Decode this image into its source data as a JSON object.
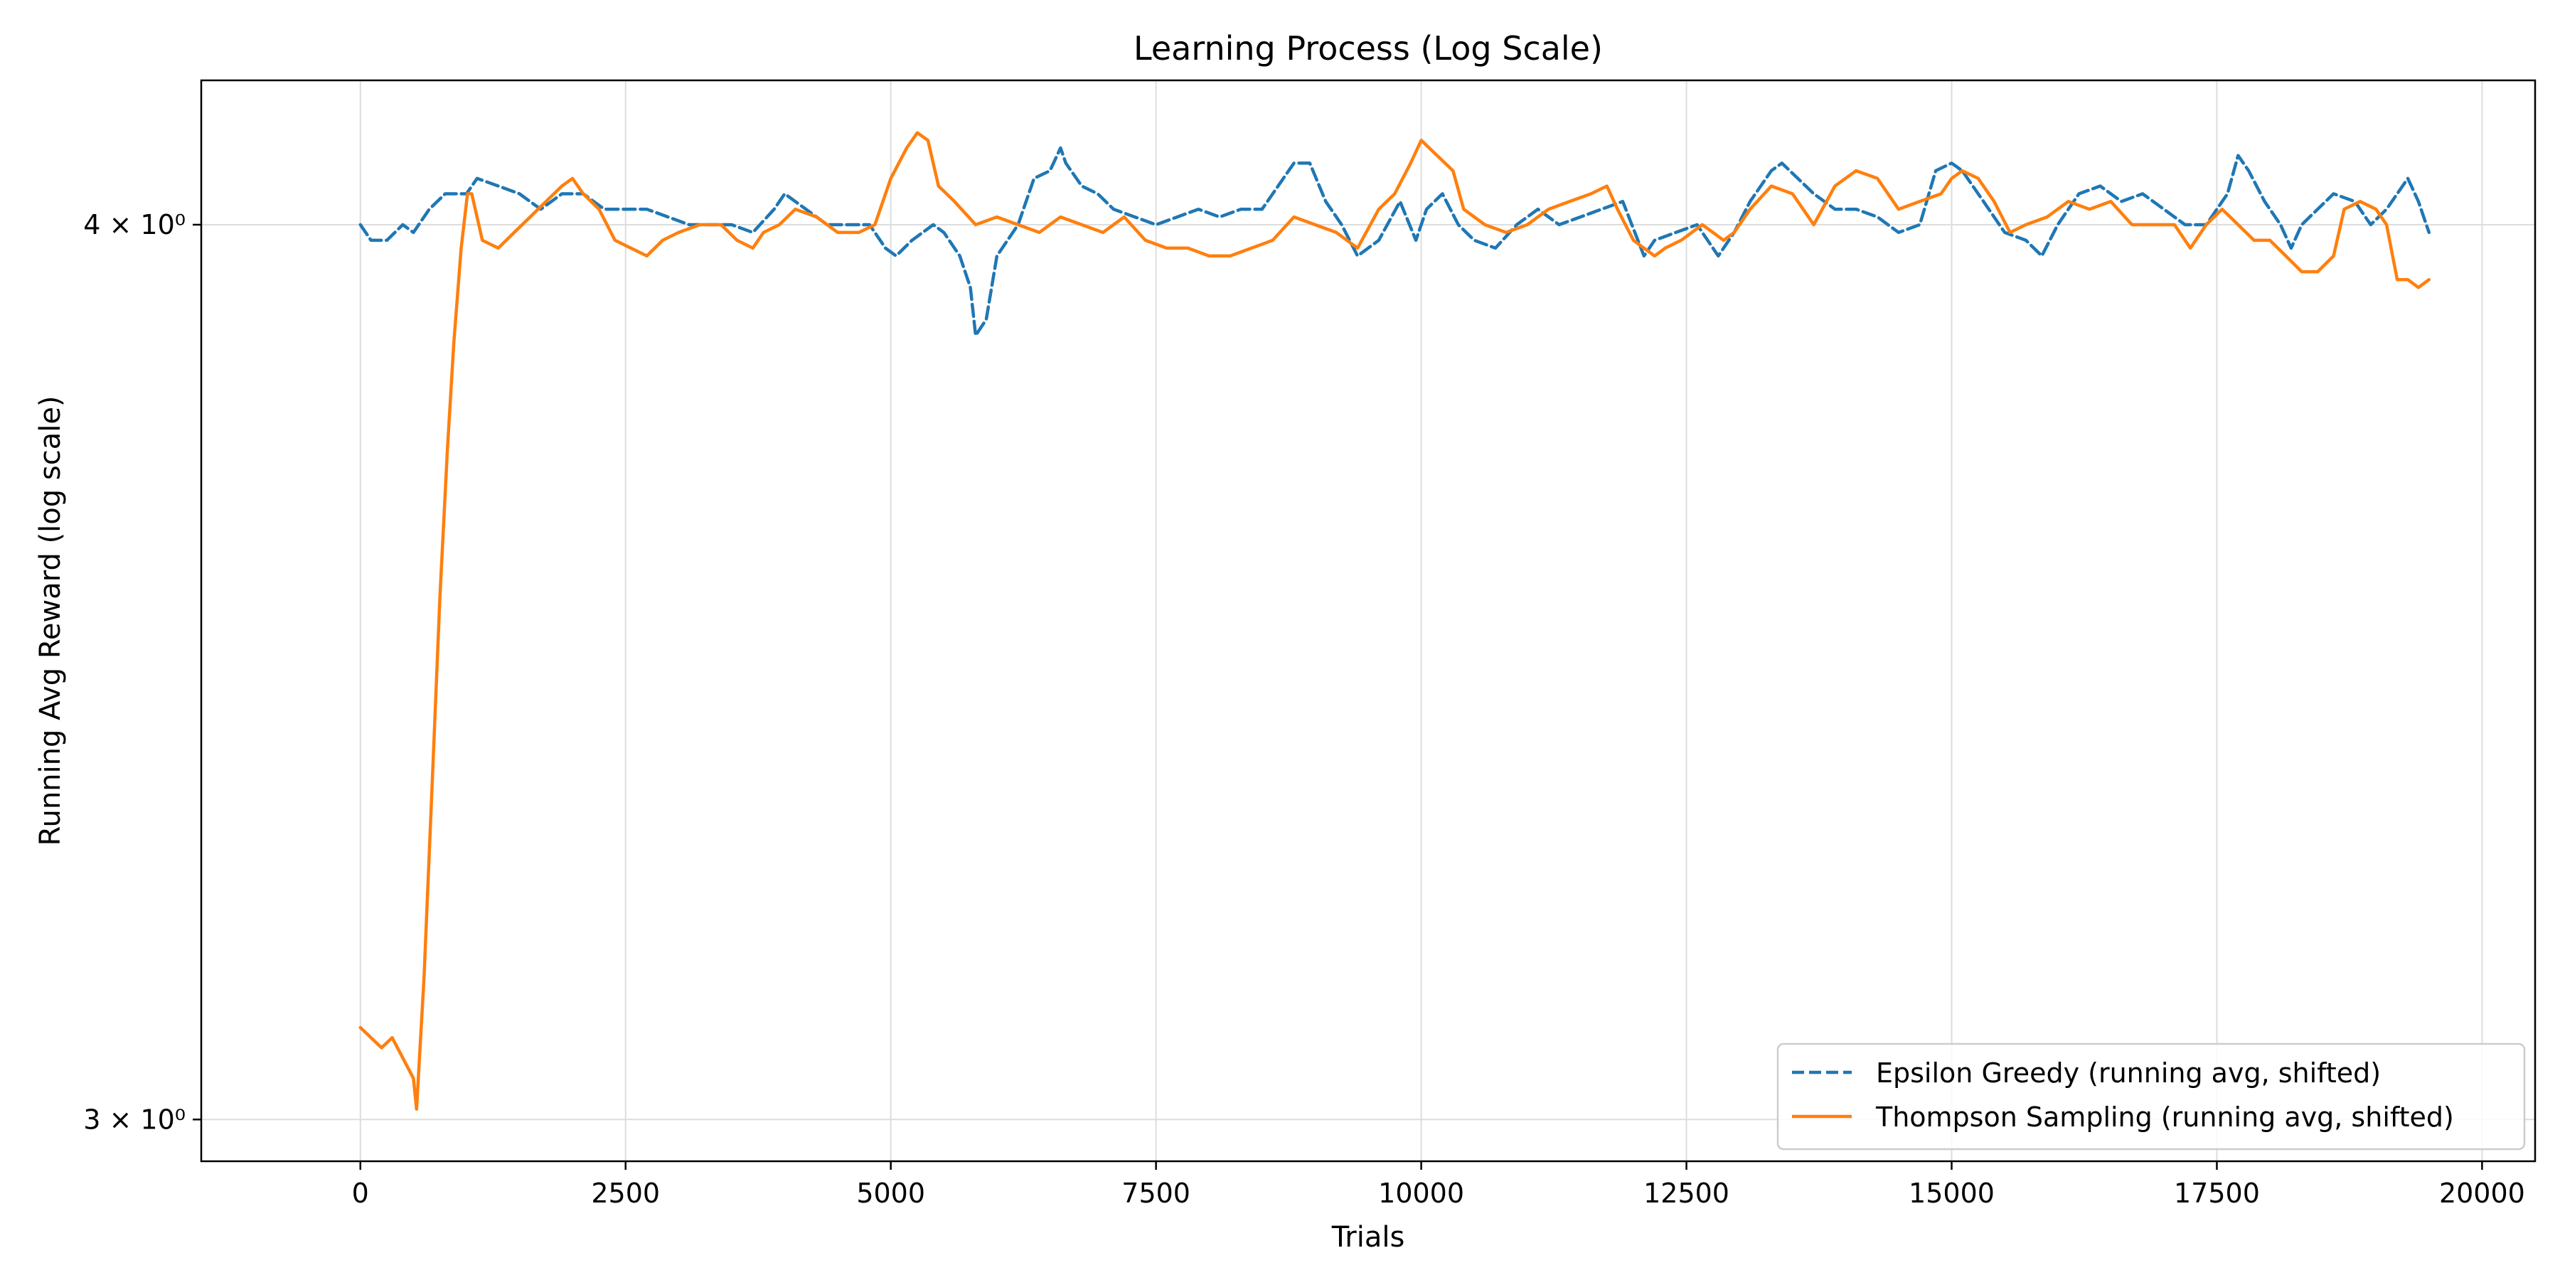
{
  "chart_data": {
    "type": "line",
    "title": "Learning Process (Log Scale)",
    "xlabel": "Trials",
    "ylabel": "Running Avg Reward (log scale)",
    "xlim": [
      -1500,
      20500
    ],
    "ylim": [
      2.96,
      4.19
    ],
    "yscale": "log",
    "grid": true,
    "legend_position": "lower-right",
    "x_ticks": [
      0,
      2500,
      5000,
      7500,
      10000,
      12500,
      15000,
      17500,
      20000
    ],
    "x_tick_labels": [
      "0",
      "2500",
      "5000",
      "7500",
      "10000",
      "12500",
      "15000",
      "17500",
      "20000"
    ],
    "y_ticks": [
      3,
      4
    ],
    "y_tick_labels": [
      "3 × 10⁰",
      "4 × 10⁰"
    ],
    "series": [
      {
        "name": "Epsilon Greedy (running avg, shifted)",
        "color": "#1f77b4",
        "style": "dashed",
        "x": [
          0,
          100,
          250,
          400,
          500,
          650,
          800,
          1000,
          1100,
          1300,
          1500,
          1700,
          1900,
          2100,
          2300,
          2500,
          2700,
          2900,
          3100,
          3300,
          3500,
          3700,
          3900,
          4000,
          4200,
          4400,
          4600,
          4800,
          4950,
          5050,
          5200,
          5400,
          5500,
          5650,
          5750,
          5800,
          5900,
          6000,
          6200,
          6350,
          6500,
          6600,
          6650,
          6800,
          6950,
          7100,
          7300,
          7500,
          7700,
          7900,
          8100,
          8300,
          8500,
          8700,
          8800,
          8950,
          9100,
          9250,
          9400,
          9600,
          9800,
          9950,
          10050,
          10200,
          10350,
          10500,
          10700,
          10900,
          11100,
          11300,
          11500,
          11700,
          11900,
          12100,
          12200,
          12400,
          12600,
          12800,
          12950,
          13100,
          13300,
          13400,
          13550,
          13700,
          13900,
          14100,
          14300,
          14500,
          14700,
          14850,
          15000,
          15100,
          15300,
          15500,
          15700,
          15850,
          16000,
          16200,
          16400,
          16600,
          16800,
          17000,
          17200,
          17400,
          17600,
          17700,
          17800,
          17950,
          18100,
          18200,
          18300,
          18450,
          18600,
          18800,
          18950,
          19100,
          19200,
          19300,
          19400,
          19500
        ],
        "y": [
          4.0,
          3.98,
          3.98,
          4.0,
          3.99,
          4.02,
          4.04,
          4.04,
          4.06,
          4.05,
          4.04,
          4.02,
          4.04,
          4.04,
          4.02,
          4.02,
          4.02,
          4.01,
          4.0,
          4.0,
          4.0,
          3.99,
          4.02,
          4.04,
          4.02,
          4.0,
          4.0,
          4.0,
          3.97,
          3.96,
          3.98,
          4.0,
          3.99,
          3.96,
          3.92,
          3.86,
          3.88,
          3.96,
          4.0,
          4.06,
          4.07,
          4.1,
          4.08,
          4.05,
          4.04,
          4.02,
          4.01,
          4.0,
          4.01,
          4.02,
          4.01,
          4.02,
          4.02,
          4.06,
          4.08,
          4.08,
          4.03,
          4.0,
          3.96,
          3.98,
          4.03,
          3.98,
          4.02,
          4.04,
          4.0,
          3.98,
          3.97,
          4.0,
          4.02,
          4.0,
          4.01,
          4.02,
          4.03,
          3.96,
          3.98,
          3.99,
          4.0,
          3.96,
          3.99,
          4.03,
          4.07,
          4.08,
          4.06,
          4.04,
          4.02,
          4.02,
          4.01,
          3.99,
          4.0,
          4.07,
          4.08,
          4.07,
          4.03,
          3.99,
          3.98,
          3.96,
          4.0,
          4.04,
          4.05,
          4.03,
          4.04,
          4.02,
          4.0,
          4.0,
          4.04,
          4.09,
          4.07,
          4.03,
          4.0,
          3.97,
          4.0,
          4.02,
          4.04,
          4.03,
          4.0,
          4.02,
          4.04,
          4.06,
          4.03,
          3.99
        ]
      },
      {
        "name": "Thompson Sampling (running avg, shifted)",
        "color": "#ff7f0e",
        "style": "solid",
        "x": [
          0,
          100,
          200,
          300,
          400,
          500,
          530,
          600,
          680,
          750,
          820,
          880,
          950,
          1010,
          1050,
          1150,
          1300,
          1450,
          1600,
          1750,
          1900,
          2000,
          2100,
          2250,
          2400,
          2550,
          2700,
          2850,
          3000,
          3200,
          3400,
          3550,
          3700,
          3800,
          3950,
          4100,
          4300,
          4500,
          4700,
          4850,
          5000,
          5150,
          5250,
          5350,
          5450,
          5600,
          5800,
          6000,
          6200,
          6400,
          6600,
          6800,
          7000,
          7200,
          7400,
          7600,
          7800,
          8000,
          8200,
          8400,
          8600,
          8800,
          9000,
          9200,
          9400,
          9600,
          9750,
          9900,
          10000,
          10150,
          10300,
          10400,
          10600,
          10800,
          11000,
          11200,
          11400,
          11600,
          11750,
          11850,
          12000,
          12100,
          12200,
          12300,
          12450,
          12650,
          12850,
          12950,
          13100,
          13300,
          13500,
          13700,
          13900,
          14100,
          14300,
          14500,
          14700,
          14900,
          15000,
          15100,
          15250,
          15400,
          15550,
          15700,
          15900,
          16100,
          16300,
          16500,
          16700,
          16900,
          17100,
          17250,
          17400,
          17550,
          17700,
          17850,
          18000,
          18150,
          18300,
          18450,
          18600,
          18700,
          18850,
          19000,
          19100,
          19200,
          19300,
          19400,
          19500
        ],
        "y": [
          3.09,
          3.08,
          3.07,
          3.08,
          3.06,
          3.04,
          3.01,
          3.14,
          3.35,
          3.55,
          3.72,
          3.85,
          3.97,
          4.04,
          4.04,
          3.98,
          3.97,
          3.99,
          4.01,
          4.03,
          4.05,
          4.06,
          4.04,
          4.02,
          3.98,
          3.97,
          3.96,
          3.98,
          3.99,
          4.0,
          4.0,
          3.98,
          3.97,
          3.99,
          4.0,
          4.02,
          4.01,
          3.99,
          3.99,
          4.0,
          4.06,
          4.1,
          4.12,
          4.11,
          4.05,
          4.03,
          4.0,
          4.01,
          4.0,
          3.99,
          4.01,
          4.0,
          3.99,
          4.01,
          3.98,
          3.97,
          3.97,
          3.96,
          3.96,
          3.97,
          3.98,
          4.01,
          4.0,
          3.99,
          3.97,
          4.02,
          4.04,
          4.08,
          4.11,
          4.09,
          4.07,
          4.02,
          4.0,
          3.99,
          4.0,
          4.02,
          4.03,
          4.04,
          4.05,
          4.02,
          3.98,
          3.97,
          3.96,
          3.97,
          3.98,
          4.0,
          3.98,
          3.99,
          4.02,
          4.05,
          4.04,
          4.0,
          4.05,
          4.07,
          4.06,
          4.02,
          4.03,
          4.04,
          4.06,
          4.07,
          4.06,
          4.03,
          3.99,
          4.0,
          4.01,
          4.03,
          4.02,
          4.03,
          4.0,
          4.0,
          4.0,
          3.97,
          4.0,
          4.02,
          4.0,
          3.98,
          3.98,
          3.96,
          3.94,
          3.94,
          3.96,
          4.02,
          4.03,
          4.02,
          4.0,
          3.93,
          3.93,
          3.92,
          3.93
        ]
      }
    ]
  }
}
